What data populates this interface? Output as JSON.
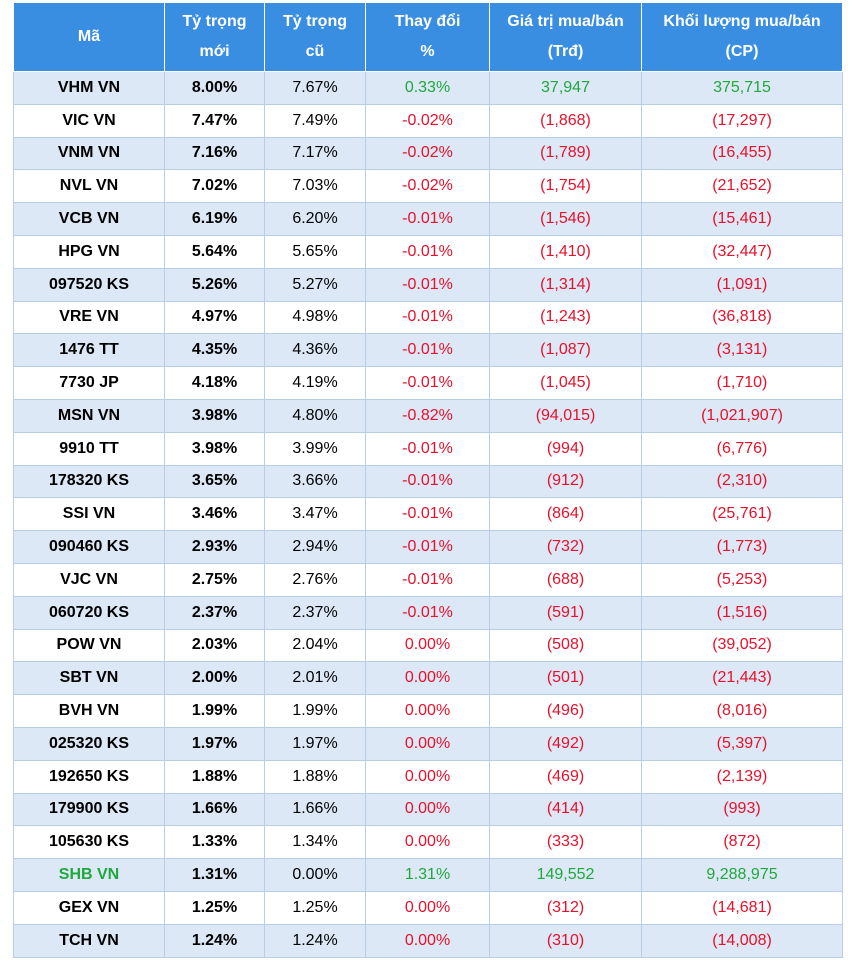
{
  "table": {
    "header": [
      [
        "Mã"
      ],
      [
        "Tỷ trọng",
        "mới"
      ],
      [
        "Tỷ trọng",
        "cũ"
      ],
      [
        "Thay đổi",
        "%"
      ],
      [
        "Giá trị mua/bán",
        "(Trđ)"
      ],
      [
        "Khối lượng mua/bán",
        "(CP)"
      ]
    ],
    "rows": [
      {
        "cells": [
          "VHM VN",
          "8.00%",
          "7.67%",
          "0.33%",
          "37,947",
          "375,715"
        ],
        "color": "#1fa83c"
      },
      {
        "cells": [
          "VIC VN",
          "7.47%",
          "7.49%",
          "-0.02%",
          "(1,868)",
          "(17,297)"
        ],
        "color": "#e8102a"
      },
      {
        "cells": [
          "VNM VN",
          "7.16%",
          "7.17%",
          "-0.02%",
          "(1,789)",
          "(16,455)"
        ],
        "color": "#e8102a"
      },
      {
        "cells": [
          "NVL VN",
          "7.02%",
          "7.03%",
          "-0.02%",
          "(1,754)",
          "(21,652)"
        ],
        "color": "#e8102a"
      },
      {
        "cells": [
          "VCB VN",
          "6.19%",
          "6.20%",
          "-0.01%",
          "(1,546)",
          "(15,461)"
        ],
        "color": "#e8102a"
      },
      {
        "cells": [
          "HPG VN",
          "5.64%",
          "5.65%",
          "-0.01%",
          "(1,410)",
          "(32,447)"
        ],
        "color": "#e8102a"
      },
      {
        "cells": [
          "097520 KS",
          "5.26%",
          "5.27%",
          "-0.01%",
          "(1,314)",
          "(1,091)"
        ],
        "color": "#e8102a"
      },
      {
        "cells": [
          "VRE VN",
          "4.97%",
          "4.98%",
          "-0.01%",
          "(1,243)",
          "(36,818)"
        ],
        "color": "#e8102a"
      },
      {
        "cells": [
          "1476 TT",
          "4.35%",
          "4.36%",
          "-0.01%",
          "(1,087)",
          "(3,131)"
        ],
        "color": "#e8102a"
      },
      {
        "cells": [
          "7730 JP",
          "4.18%",
          "4.19%",
          "-0.01%",
          "(1,045)",
          "(1,710)"
        ],
        "color": "#e8102a"
      },
      {
        "cells": [
          "MSN VN",
          "3.98%",
          "4.80%",
          "-0.82%",
          "(94,015)",
          "(1,021,907)"
        ],
        "color": "#e8102a"
      },
      {
        "cells": [
          "9910 TT",
          "3.98%",
          "3.99%",
          "-0.01%",
          "(994)",
          "(6,776)"
        ],
        "color": "#e8102a"
      },
      {
        "cells": [
          "178320 KS",
          "3.65%",
          "3.66%",
          "-0.01%",
          "(912)",
          "(2,310)"
        ],
        "color": "#e8102a"
      },
      {
        "cells": [
          "SSI VN",
          "3.46%",
          "3.47%",
          "-0.01%",
          "(864)",
          "(25,761)"
        ],
        "color": "#e8102a"
      },
      {
        "cells": [
          "090460 KS",
          "2.93%",
          "2.94%",
          "-0.01%",
          "(732)",
          "(1,773)"
        ],
        "color": "#e8102a"
      },
      {
        "cells": [
          "VJC VN",
          "2.75%",
          "2.76%",
          "-0.01%",
          "(688)",
          "(5,253)"
        ],
        "color": "#e8102a"
      },
      {
        "cells": [
          "060720 KS",
          "2.37%",
          "2.37%",
          "-0.01%",
          "(591)",
          "(1,516)"
        ],
        "color": "#e8102a"
      },
      {
        "cells": [
          "POW VN",
          "2.03%",
          "2.04%",
          "0.00%",
          "(508)",
          "(39,052)"
        ],
        "color": "#e8102a"
      },
      {
        "cells": [
          "SBT VN",
          "2.00%",
          "2.01%",
          "0.00%",
          "(501)",
          "(21,443)"
        ],
        "color": "#e8102a"
      },
      {
        "cells": [
          "BVH VN",
          "1.99%",
          "1.99%",
          "0.00%",
          "(496)",
          "(8,016)"
        ],
        "color": "#e8102a"
      },
      {
        "cells": [
          "025320 KS",
          "1.97%",
          "1.97%",
          "0.00%",
          "(492)",
          "(5,397)"
        ],
        "color": "#e8102a"
      },
      {
        "cells": [
          "192650 KS",
          "1.88%",
          "1.88%",
          "0.00%",
          "(469)",
          "(2,139)"
        ],
        "color": "#e8102a"
      },
      {
        "cells": [
          "179900 KS",
          "1.66%",
          "1.66%",
          "0.00%",
          "(414)",
          "(993)"
        ],
        "color": "#e8102a"
      },
      {
        "cells": [
          "105630 KS",
          "1.33%",
          "1.34%",
          "0.00%",
          "(333)",
          "(872)"
        ],
        "color": "#e8102a"
      },
      {
        "cells": [
          "SHB VN",
          "1.31%",
          "0.00%",
          "1.31%",
          "149,552",
          "9,288,975"
        ],
        "color": "#1fa83c",
        "code_color": "#1fa83c"
      },
      {
        "cells": [
          "GEX VN",
          "1.25%",
          "1.25%",
          "0.00%",
          "(312)",
          "(14,681)"
        ],
        "color": "#e8102a"
      },
      {
        "cells": [
          "TCH VN",
          "1.24%",
          "1.24%",
          "0.00%",
          "(310)",
          "(14,008)"
        ],
        "color": "#e8102a"
      }
    ]
  }
}
